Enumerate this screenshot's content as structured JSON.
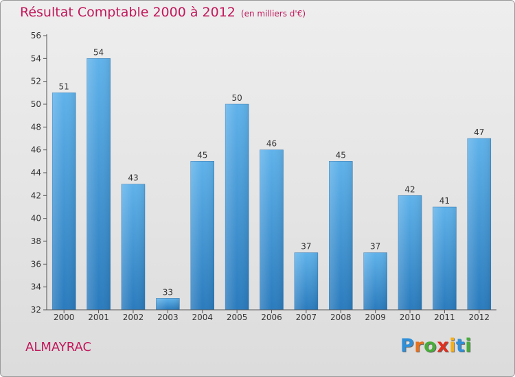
{
  "chart_data": {
    "type": "bar",
    "title": "Résultat Comptable 2000 à 2012",
    "subtitle": "(en milliers d'€)",
    "categories": [
      "2000",
      "2001",
      "2002",
      "2003",
      "2004",
      "2005",
      "2006",
      "2007",
      "2008",
      "2009",
      "2010",
      "2011",
      "2012"
    ],
    "values": [
      51,
      54,
      43,
      33,
      45,
      50,
      46,
      37,
      45,
      37,
      42,
      41,
      47
    ],
    "ylim": [
      32,
      56
    ],
    "yticks": [
      32,
      34,
      36,
      38,
      40,
      42,
      44,
      46,
      48,
      50,
      52,
      54,
      56
    ],
    "xlabel": "",
    "ylabel": "",
    "grid": false,
    "bar_color": "#3a8fd4"
  },
  "location": "ALMAYRAC",
  "brand": {
    "letters": [
      "P",
      "r",
      "o",
      "x",
      "i",
      "t",
      "i"
    ],
    "colors": [
      "#2f8fd8",
      "#e8711c",
      "#49ad3b",
      "#e0301e",
      "#f2b01e",
      "#2f8fd8",
      "#49ad3b"
    ]
  },
  "colors": {
    "title": "#c2185b",
    "axis": "#555555"
  }
}
